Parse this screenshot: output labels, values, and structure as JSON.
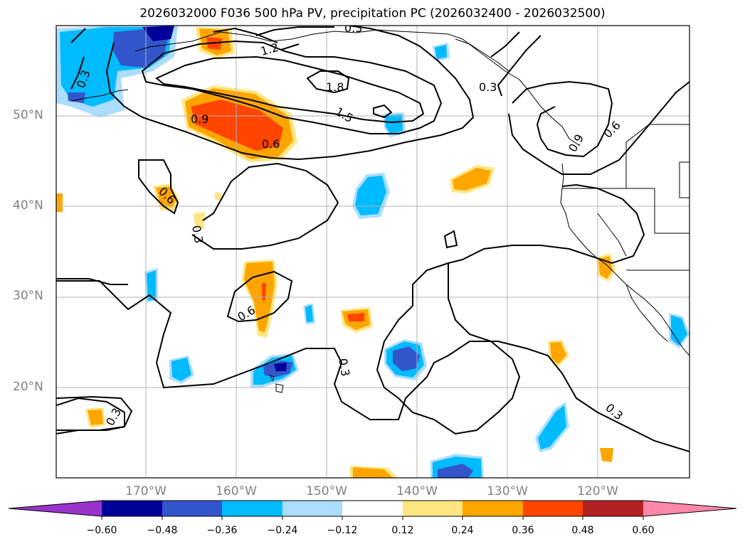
{
  "title": "2026032000 F036 500 hPa PV, precipitation PC (2026032400 - 2026032500)",
  "axes": {
    "lat_ticks": [
      "50°N",
      "40°N",
      "30°N",
      "20°N"
    ],
    "lon_ticks": [
      "170°W",
      "160°W",
      "150°W",
      "140°W",
      "130°W",
      "120°W"
    ]
  },
  "contour_labels": [
    "0.3",
    "0.3",
    "0.3",
    "1.2",
    "1.8",
    "1.5",
    "0.9",
    "0.6",
    "0.6",
    "0.3",
    "0.6",
    "0.3",
    "0.3",
    "0.3",
    "0.9",
    "0.6"
  ],
  "colorbar": {
    "tick_labels": [
      "−0.60",
      "−0.48",
      "−0.36",
      "−0.24",
      "−0.12",
      "0.12",
      "0.24",
      "0.36",
      "0.48",
      "0.60"
    ],
    "colors": [
      "#9933cc",
      "#000099",
      "#3355cc",
      "#00bbff",
      "#aaddff",
      "#ffffff",
      "#ffe680",
      "#ffa500",
      "#ff4500",
      "#b22222",
      "#ff88aa"
    ]
  },
  "colors": {
    "neg_light": "#aaddff",
    "neg_mid": "#00bbff",
    "neg_dark": "#3355cc",
    "neg_darkest": "#000099",
    "pos_light": "#ffe680",
    "pos_mid": "#ffa500",
    "pos_dark": "#ff4500"
  }
}
